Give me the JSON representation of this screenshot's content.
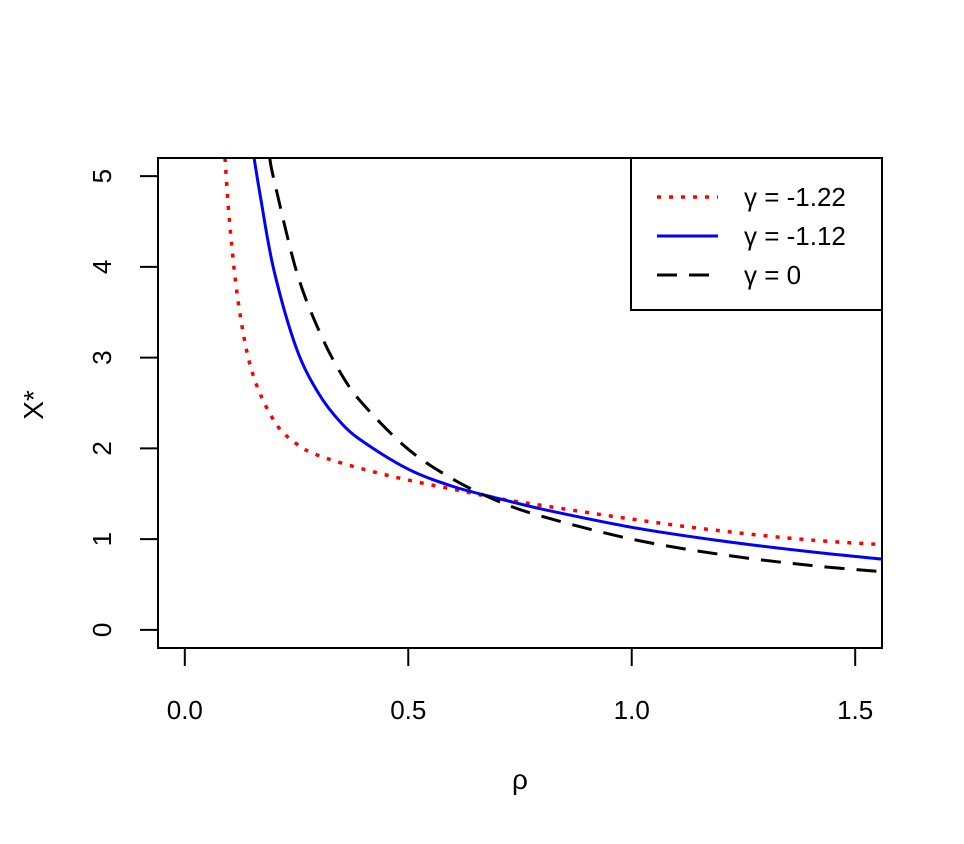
{
  "chart_data": {
    "type": "line",
    "xlabel": "ρ",
    "ylabel": "X*",
    "xlim": [
      -0.06,
      1.56
    ],
    "ylim": [
      -0.2,
      5.2
    ],
    "x_ticks": [
      0.0,
      0.5,
      1.0,
      1.5
    ],
    "x_tick_labels": [
      "0.0",
      "0.5",
      "1.0",
      "1.5"
    ],
    "y_ticks": [
      0,
      1,
      2,
      3,
      4,
      5
    ],
    "y_tick_labels": [
      "0",
      "1",
      "2",
      "3",
      "4",
      "5"
    ],
    "grid": false,
    "legend_position": "top-right",
    "series": [
      {
        "name": "γ = -1.22",
        "color": "#ff0000",
        "line_style": "dotted",
        "x": [
          0.09,
          0.1,
          0.12,
          0.15,
          0.2,
          0.25,
          0.3,
          0.4,
          0.5,
          0.6,
          0.7,
          0.8,
          1.0,
          1.2,
          1.4,
          1.56
        ],
        "y": [
          5.2,
          4.5,
          3.6,
          2.85,
          2.3,
          2.05,
          1.92,
          1.77,
          1.65,
          1.55,
          1.45,
          1.37,
          1.22,
          1.09,
          0.99,
          0.94
        ]
      },
      {
        "name": "γ = -1.12",
        "color": "#0000ff",
        "line_style": "solid",
        "x": [
          0.155,
          0.17,
          0.2,
          0.25,
          0.3,
          0.35,
          0.4,
          0.5,
          0.6,
          0.7,
          0.8,
          1.0,
          1.2,
          1.4,
          1.56
        ],
        "y": [
          5.2,
          4.75,
          3.95,
          3.1,
          2.6,
          2.28,
          2.07,
          1.77,
          1.58,
          1.45,
          1.33,
          1.13,
          0.98,
          0.86,
          0.78
        ]
      },
      {
        "name": "γ = 0",
        "color": "#000000",
        "line_style": "dashed",
        "x": [
          0.19,
          0.2,
          0.25,
          0.3,
          0.35,
          0.4,
          0.5,
          0.6,
          0.7,
          0.8,
          1.0,
          1.2,
          1.4,
          1.56
        ],
        "y": [
          5.2,
          4.95,
          3.95,
          3.3,
          2.82,
          2.48,
          1.99,
          1.66,
          1.42,
          1.25,
          1.0,
          0.83,
          0.71,
          0.64
        ]
      }
    ]
  }
}
